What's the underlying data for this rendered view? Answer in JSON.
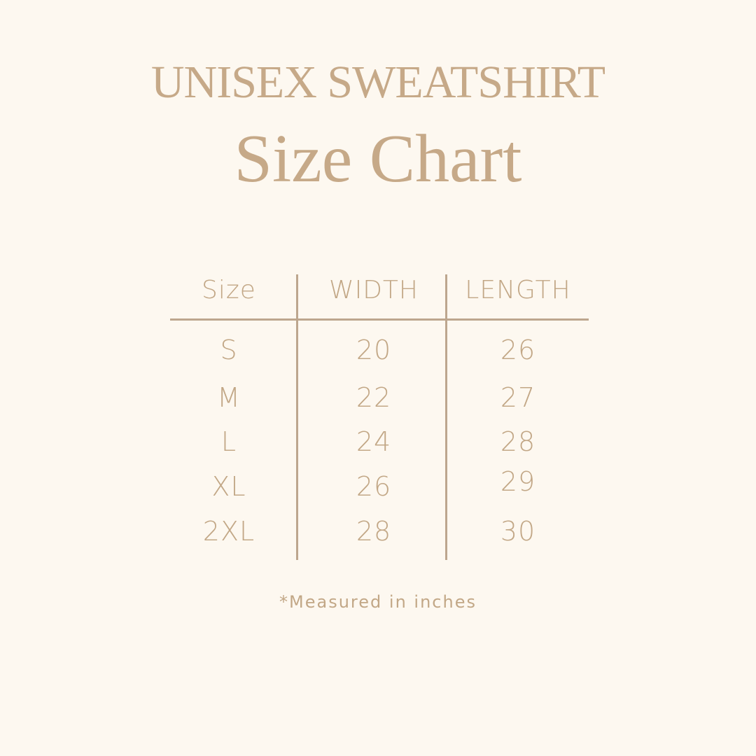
{
  "title": "UNISEX SWEATSHIRT",
  "subtitle": "Size Chart",
  "table": {
    "headers": [
      "Size",
      "WIDTH",
      "LENGTH"
    ],
    "rows": [
      [
        "S",
        "20",
        "26"
      ],
      [
        "M",
        "22",
        "27"
      ],
      [
        "L",
        "24",
        "28"
      ],
      [
        "XL",
        "26",
        "29"
      ],
      [
        "2XL",
        "28",
        "30"
      ]
    ]
  },
  "footnote": "*Measured in inches",
  "colors": {
    "background": "#fdf8f0",
    "text": "#c2a786",
    "rule": "#bda68e"
  }
}
